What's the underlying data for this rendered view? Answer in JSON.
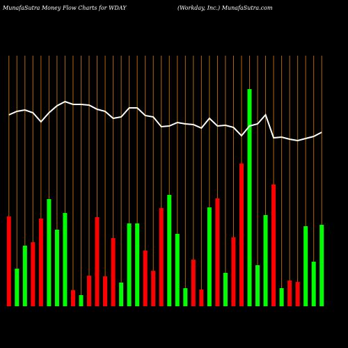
{
  "chart_data": {
    "type": "bar",
    "title": "MunafaSutra  Money Flow  Charts for WDAY",
    "subtitle": "(Workday, Inc.) MunafaSutra.com",
    "categories": [
      null,
      null,
      null,
      null,
      null,
      null,
      null,
      null,
      null,
      null,
      null,
      null,
      null,
      null,
      null,
      null,
      null,
      null,
      null,
      null,
      null,
      null,
      null,
      null,
      null,
      null,
      null,
      null,
      null,
      null,
      null,
      null,
      null,
      null,
      null,
      null,
      null,
      null,
      null,
      null
    ],
    "series": [
      {
        "name": null,
        "type": "bar",
        "values": [
          129,
          54,
          87,
          92,
          126,
          154,
          110,
          134,
          23,
          16,
          44,
          128,
          43,
          98,
          34,
          119,
          119,
          80,
          51,
          141,
          160,
          104,
          26,
          67,
          24,
          142,
          155,
          48,
          99,
          205,
          312,
          59,
          131,
          175,
          26,
          37,
          35,
          115,
          64,
          117
        ],
        "colors": [
          "#ff0000",
          "#00ff00",
          "#00ff00",
          "#ff0000",
          "#ff0000",
          "#00ff00",
          "#00ff00",
          "#00ff00",
          "#ff0000",
          "#00ff00",
          "#ff0000",
          "#ff0000",
          "#ff0000",
          "#ff0000",
          "#00ff00",
          "#00ff00",
          "#00ff00",
          "#ff0000",
          "#ff0000",
          "#ff0000",
          "#00ff00",
          "#00ff00",
          "#00ff00",
          "#ff0000",
          "#ff0000",
          "#00ff00",
          "#ff0000",
          "#00ff00",
          "#ff0000",
          "#ff0000",
          "#00ff00",
          "#00ff00",
          "#00ff00",
          "#ff0000",
          "#00ff00",
          "#ff0000",
          "#ff0000",
          "#00ff00",
          "#00ff00",
          "#00ff00"
        ]
      },
      {
        "name": null,
        "type": "line",
        "color": "#ffffff",
        "values": [
          275,
          280,
          282,
          278,
          265,
          278,
          288,
          294,
          290,
          290,
          289,
          283,
          280,
          270,
          272,
          285,
          285,
          274,
          272,
          258,
          259,
          264,
          262,
          261,
          256,
          270,
          259,
          260,
          257,
          245,
          259,
          262,
          275,
          242,
          243,
          240,
          238,
          241,
          244,
          250
        ]
      }
    ],
    "ylim": [
      0,
      440
    ]
  }
}
